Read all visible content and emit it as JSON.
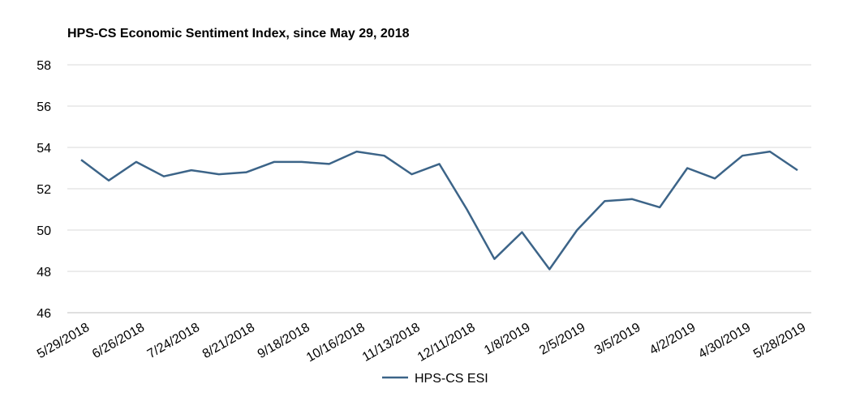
{
  "chart_data": {
    "type": "line",
    "title": "HPS-CS Economic Sentiment Index, since May 29, 2018",
    "xlabel": "",
    "ylabel": "",
    "ylim": [
      46,
      58
    ],
    "yticks": [
      46,
      48,
      50,
      52,
      54,
      56,
      58
    ],
    "grid": true,
    "legend_position": "bottom-center",
    "x": [
      "5/29/2018",
      "6/12/2018",
      "6/26/2018",
      "7/10/2018",
      "7/24/2018",
      "8/7/2018",
      "8/21/2018",
      "9/4/2018",
      "9/18/2018",
      "10/2/2018",
      "10/16/2018",
      "10/30/2018",
      "11/13/2018",
      "11/27/2018",
      "12/11/2018",
      "12/25/2018",
      "1/8/2019",
      "1/22/2019",
      "2/5/2019",
      "2/19/2019",
      "3/5/2019",
      "3/19/2019",
      "4/2/2019",
      "4/16/2019",
      "4/30/2019",
      "5/14/2019",
      "5/28/2019"
    ],
    "xtick_labels": [
      "5/29/2018",
      "6/26/2018",
      "7/24/2018",
      "8/21/2018",
      "9/18/2018",
      "10/16/2018",
      "11/13/2018",
      "12/11/2018",
      "1/8/2019",
      "2/5/2019",
      "3/5/2019",
      "4/2/2019",
      "4/30/2019",
      "5/28/2019"
    ],
    "series": [
      {
        "name": "HPS-CS ESI",
        "color": "#3c6488",
        "values": [
          53.4,
          52.4,
          53.3,
          52.6,
          52.9,
          52.7,
          52.8,
          53.3,
          53.3,
          53.2,
          53.8,
          53.6,
          52.7,
          53.2,
          51.0,
          48.6,
          49.9,
          48.1,
          50.0,
          51.4,
          51.5,
          51.1,
          53.0,
          52.5,
          53.6,
          53.8,
          52.9
        ]
      }
    ]
  }
}
